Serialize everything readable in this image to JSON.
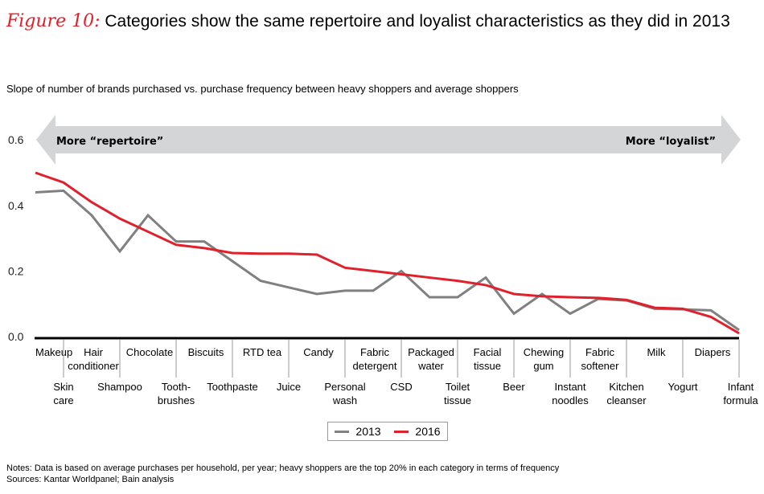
{
  "figure_label": "Figure 10:",
  "title": "Categories show the same repertoire and loyalist characteristics as they did in 2013",
  "subtitle": "Slope of number of brands purchased vs. purchase frequency between heavy shoppers and average shoppers",
  "notes": "Notes: Data is based on average purchases per household, per year; heavy shoppers are the top 20% in each category in terms of frequency",
  "sources": "Sources: Kantar Worldpanel; Bain analysis",
  "colors": {
    "series_2013": "#808080",
    "series_2016": "#e0202a",
    "arrow": "#d4d5d7",
    "accent": "#e0202a"
  },
  "chart_data": {
    "type": "line",
    "title": "Categories show the same repertoire and loyalist characteristics as they did in 2013",
    "ylabel": "Slope of number of brands purchased vs. purchase frequency between heavy shoppers and average shoppers",
    "xlabel": "",
    "ylim": [
      0,
      0.6
    ],
    "yticks": [
      "0.0",
      "0.2",
      "0.4",
      "0.6"
    ],
    "ytick_values": [
      0,
      0.2,
      0.4,
      0.6
    ],
    "grid": false,
    "legend_position": "bottom-center",
    "annotations": {
      "left_arrow": "More “repertoire”",
      "right_arrow": "More “loyalist”"
    },
    "categories": [
      "Makeup",
      "Skin care",
      "Hair conditioner",
      "Shampoo",
      "Chocolate",
      "Tooth- brushes",
      "Biscuits",
      "Toothpaste",
      "RTD tea",
      "Juice",
      "Candy",
      "Personal wash",
      "Fabric detergent",
      "CSD",
      "Packaged water",
      "Toilet tissue",
      "Facial tissue",
      "Beer",
      "Chewing gum",
      "Instant noodles",
      "Fabric softener",
      "Kitchen cleanser",
      "Milk",
      "Yogurt",
      "Diapers",
      "Infant formula"
    ],
    "category_lines": [
      [
        "Makeup"
      ],
      [
        "Skin",
        "care"
      ],
      [
        "Hair",
        "conditioner"
      ],
      [
        "Shampoo"
      ],
      [
        "Chocolate"
      ],
      [
        "Tooth-",
        "brushes"
      ],
      [
        "Biscuits"
      ],
      [
        "Toothpaste"
      ],
      [
        "RTD tea"
      ],
      [
        "Juice"
      ],
      [
        "Candy"
      ],
      [
        "Personal",
        "wash"
      ],
      [
        "Fabric",
        "detergent"
      ],
      [
        "CSD"
      ],
      [
        "Packaged",
        "water"
      ],
      [
        "Toilet",
        "tissue"
      ],
      [
        "Facial",
        "tissue"
      ],
      [
        "Beer"
      ],
      [
        "Chewing",
        "gum"
      ],
      [
        "Instant",
        "noodles"
      ],
      [
        "Fabric",
        "softener"
      ],
      [
        "Kitchen",
        "cleanser"
      ],
      [
        "Milk"
      ],
      [
        "Yogurt"
      ],
      [
        "Diapers"
      ],
      [
        "Infant",
        "formula"
      ]
    ],
    "series": [
      {
        "name": "2013",
        "values": [
          0.44,
          0.445,
          0.37,
          0.26,
          0.37,
          0.29,
          0.29,
          0.23,
          0.17,
          0.15,
          0.13,
          0.14,
          0.14,
          0.2,
          0.12,
          0.12,
          0.18,
          0.07,
          0.13,
          0.07,
          0.115,
          0.11,
          0.085,
          0.083,
          0.08,
          0.02
        ]
      },
      {
        "name": "2016",
        "values": [
          0.5,
          0.47,
          0.41,
          0.36,
          0.32,
          0.28,
          0.27,
          0.255,
          0.253,
          0.253,
          0.25,
          0.21,
          0.2,
          0.19,
          0.18,
          0.17,
          0.157,
          0.13,
          0.123,
          0.12,
          0.118,
          0.112,
          0.088,
          0.085,
          0.06,
          0.01
        ]
      }
    ]
  }
}
